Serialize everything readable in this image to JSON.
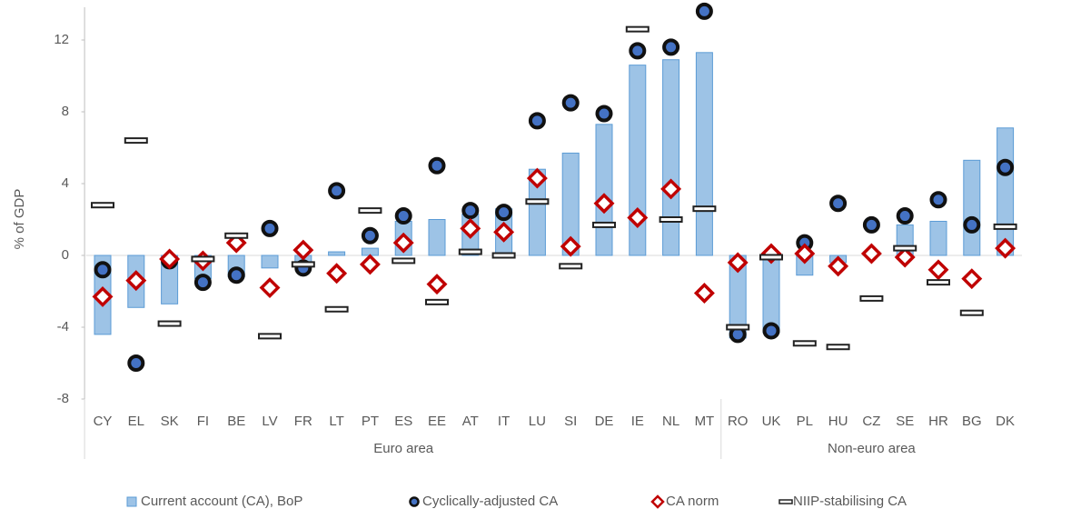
{
  "chart_data": {
    "type": "bar",
    "ylabel": "% of GDP",
    "ylim": [
      -8,
      14
    ],
    "yticks": [
      -8,
      -4,
      0,
      4,
      8,
      12
    ],
    "groups": [
      {
        "name": "Euro area",
        "categories": [
          "CY",
          "EL",
          "SK",
          "FI",
          "BE",
          "LV",
          "FR",
          "LT",
          "PT",
          "ES",
          "EE",
          "AT",
          "IT",
          "LU",
          "SI",
          "DE",
          "IE",
          "NL",
          "MT"
        ]
      },
      {
        "name": "Non-euro area",
        "categories": [
          "RO",
          "UK",
          "PL",
          "HU",
          "CZ",
          "SE",
          "HR",
          "BG",
          "DK"
        ]
      }
    ],
    "series": [
      {
        "name": "Current account (CA), BoP",
        "mark": "bar",
        "color": "#9dc3e6",
        "values": [
          -4.4,
          -2.9,
          -2.7,
          -1.3,
          -1.2,
          -0.7,
          -0.6,
          0.2,
          0.4,
          1.9,
          2.0,
          2.3,
          2.6,
          4.8,
          5.7,
          7.3,
          10.6,
          10.9,
          11.3,
          -4.6,
          -4.3,
          -1.1,
          -0.4,
          0.2,
          1.7,
          1.9,
          5.3,
          7.1
        ]
      },
      {
        "name": "Cyclically-adjusted CA",
        "mark": "circle",
        "color": "#4472c4",
        "values": [
          -0.8,
          -6.0,
          -0.3,
          -1.5,
          -1.1,
          1.5,
          -0.7,
          3.6,
          1.1,
          2.2,
          5.0,
          2.5,
          2.4,
          7.5,
          8.5,
          7.9,
          11.4,
          11.6,
          13.6,
          -4.4,
          -4.2,
          0.7,
          2.9,
          1.7,
          2.2,
          3.1,
          1.7,
          4.9
        ]
      },
      {
        "name": "CA norm",
        "mark": "diamond",
        "color": "#c00000",
        "values": [
          -2.3,
          -1.4,
          -0.2,
          -0.3,
          0.7,
          -1.8,
          0.3,
          -1.0,
          -0.5,
          0.7,
          -1.6,
          1.5,
          1.3,
          4.3,
          0.5,
          2.9,
          2.1,
          3.7,
          -2.1,
          -0.4,
          0.1,
          0.1,
          -0.6,
          0.1,
          -0.1,
          -0.8,
          -1.3,
          0.4
        ]
      },
      {
        "name": "NIIP-stabilising CA",
        "mark": "dash",
        "color": "#222222",
        "values": [
          2.8,
          6.4,
          -3.8,
          -0.2,
          1.1,
          -4.5,
          -0.5,
          -3.0,
          2.5,
          -0.3,
          -2.6,
          0.2,
          0.0,
          3.0,
          -0.6,
          1.7,
          12.6,
          2.0,
          2.6,
          -4.0,
          -0.1,
          -4.9,
          -5.1,
          -2.4,
          0.4,
          -1.5,
          -3.2,
          1.6
        ]
      }
    ]
  }
}
